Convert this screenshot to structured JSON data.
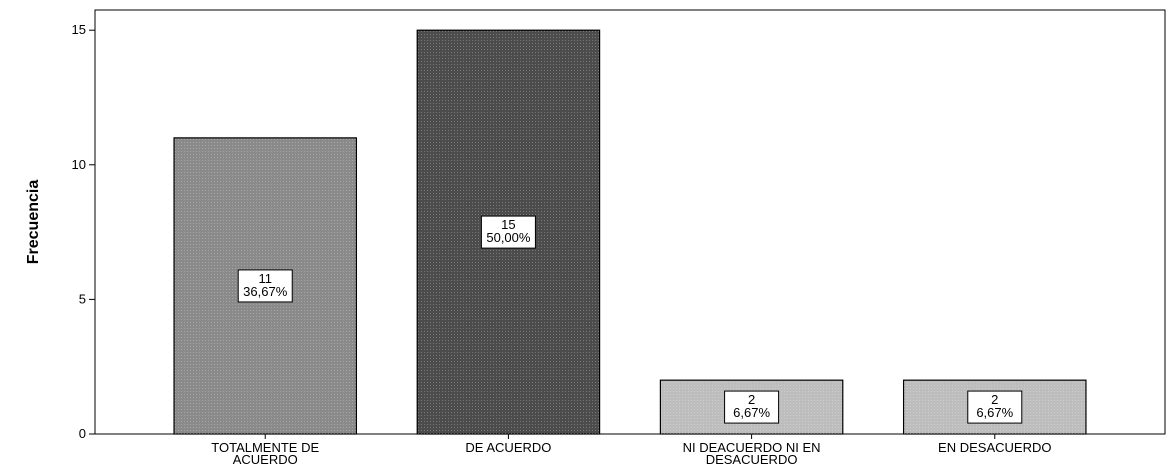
{
  "chart_data": {
    "type": "bar",
    "title": "",
    "xlabel": "",
    "ylabel": "Frecuencia",
    "ylim": [
      0,
      15.75
    ],
    "yticks": [
      0,
      5,
      10,
      15
    ],
    "grid": false,
    "categories": [
      [
        "TOTALMENTE DE",
        "ACUERDO"
      ],
      [
        "DE ACUERDO"
      ],
      [
        "NI DEACUERDO NI EN",
        "DESACUERDO"
      ],
      [
        "EN DESACUERDO"
      ]
    ],
    "values": [
      11,
      15,
      2,
      2
    ],
    "data_labels": [
      [
        "11",
        "36,67%"
      ],
      [
        "15",
        "50,00%"
      ],
      [
        "2",
        "6,67%"
      ],
      [
        "2",
        "6,67%"
      ]
    ],
    "colors": [
      "#8a8a8a",
      "#4c4c4c",
      "#bdbdbd",
      "#bdbdbd"
    ]
  }
}
